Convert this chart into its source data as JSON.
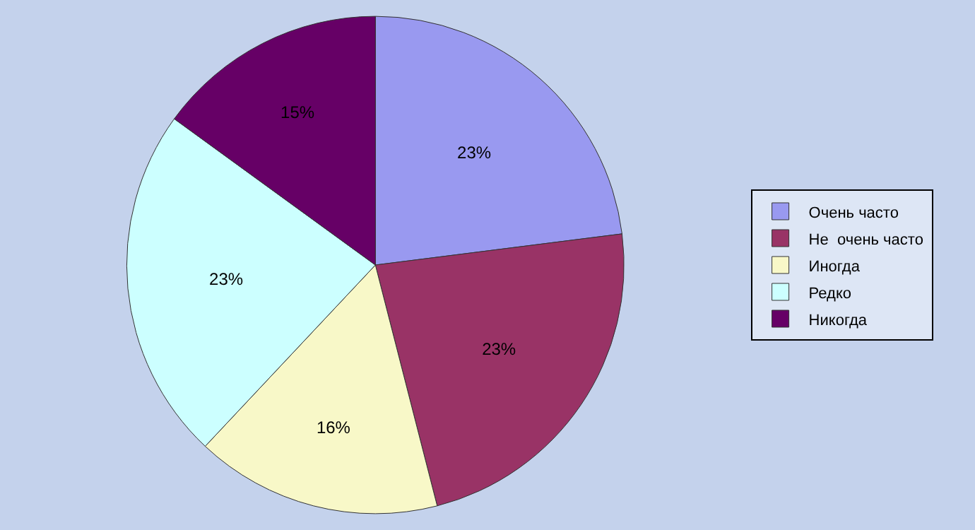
{
  "chart_data": {
    "type": "pie",
    "categories": [
      "Очень часто",
      "Не  очень часто",
      "Иногда",
      "Редко",
      "Никогда"
    ],
    "values": [
      23,
      23,
      16,
      23,
      15
    ],
    "value_labels": [
      "23%",
      "23%",
      "16%",
      "23%",
      "15%"
    ],
    "colors": [
      "#9999f0",
      "#993366",
      "#f8f8c8",
      "#ccffff",
      "#660066"
    ],
    "legend": "right"
  }
}
